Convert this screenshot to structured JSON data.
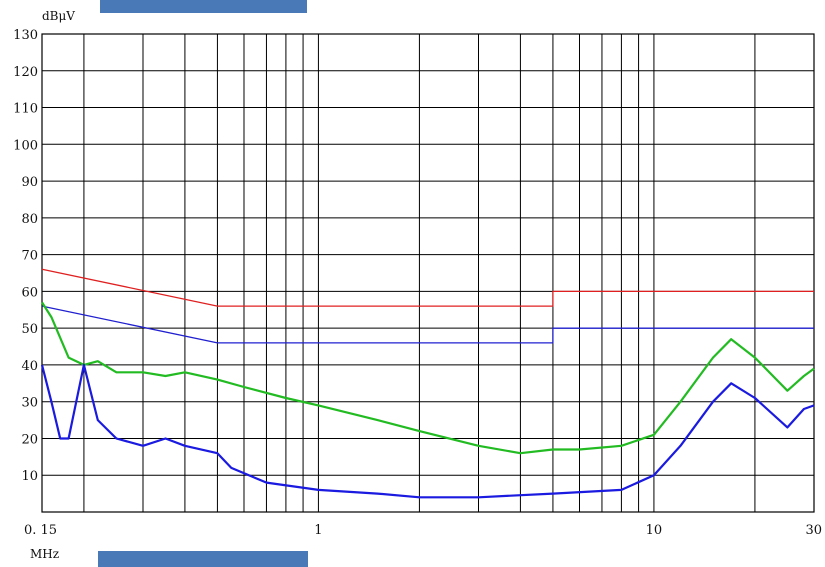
{
  "chart_data": {
    "type": "line",
    "title": "",
    "xlabel": "MHz",
    "ylabel": "dBμV",
    "x_scale": "log",
    "xlim": [
      0.15,
      30
    ],
    "ylim": [
      0,
      130
    ],
    "grid": true,
    "y_ticks": [
      10,
      20,
      30,
      40,
      50,
      60,
      70,
      80,
      90,
      100,
      110,
      120,
      130
    ],
    "x_tick_labels": [
      {
        "value": 0.15,
        "label": "0. 15"
      },
      {
        "value": 1,
        "label": "1"
      },
      {
        "value": 10,
        "label": "10"
      },
      {
        "value": 30,
        "label": "30"
      }
    ],
    "series": [
      {
        "color": "#e02020",
        "x": [
          0.15,
          0.5,
          0.5,
          5,
          5,
          30
        ],
        "values": [
          66,
          56,
          56,
          56,
          60,
          60
        ]
      },
      {
        "color": "#2020d0",
        "x": [
          0.15,
          0.5,
          0.5,
          5,
          5,
          30
        ],
        "values": [
          56,
          46,
          46,
          46,
          50,
          50
        ]
      },
      {
        "color": "#22bb22",
        "x": [
          0.15,
          0.16,
          0.18,
          0.2,
          0.22,
          0.25,
          0.3,
          0.35,
          0.4,
          0.5,
          0.6,
          0.8,
          1,
          1.5,
          2,
          3,
          4,
          5,
          6,
          8,
          10,
          12,
          15,
          17,
          20,
          25,
          28,
          30
        ],
        "values": [
          57,
          53,
          42,
          40,
          41,
          38,
          38,
          37,
          38,
          36,
          34,
          31,
          29,
          25,
          22,
          18,
          16,
          17,
          17,
          18,
          21,
          30,
          42,
          47,
          42,
          33,
          37,
          39
        ]
      },
      {
        "color": "#1a1ae0",
        "x": [
          0.15,
          0.16,
          0.17,
          0.18,
          0.2,
          0.22,
          0.25,
          0.3,
          0.35,
          0.4,
          0.5,
          0.55,
          0.7,
          1,
          1.5,
          2,
          3,
          5,
          8,
          10,
          12,
          15,
          17,
          20,
          25,
          28,
          30
        ],
        "values": [
          40,
          30,
          20,
          20,
          40,
          25,
          20,
          18,
          20,
          18,
          16,
          12,
          8,
          6,
          5,
          4,
          4,
          5,
          6,
          10,
          18,
          30,
          35,
          31,
          23,
          28,
          29
        ]
      }
    ]
  }
}
